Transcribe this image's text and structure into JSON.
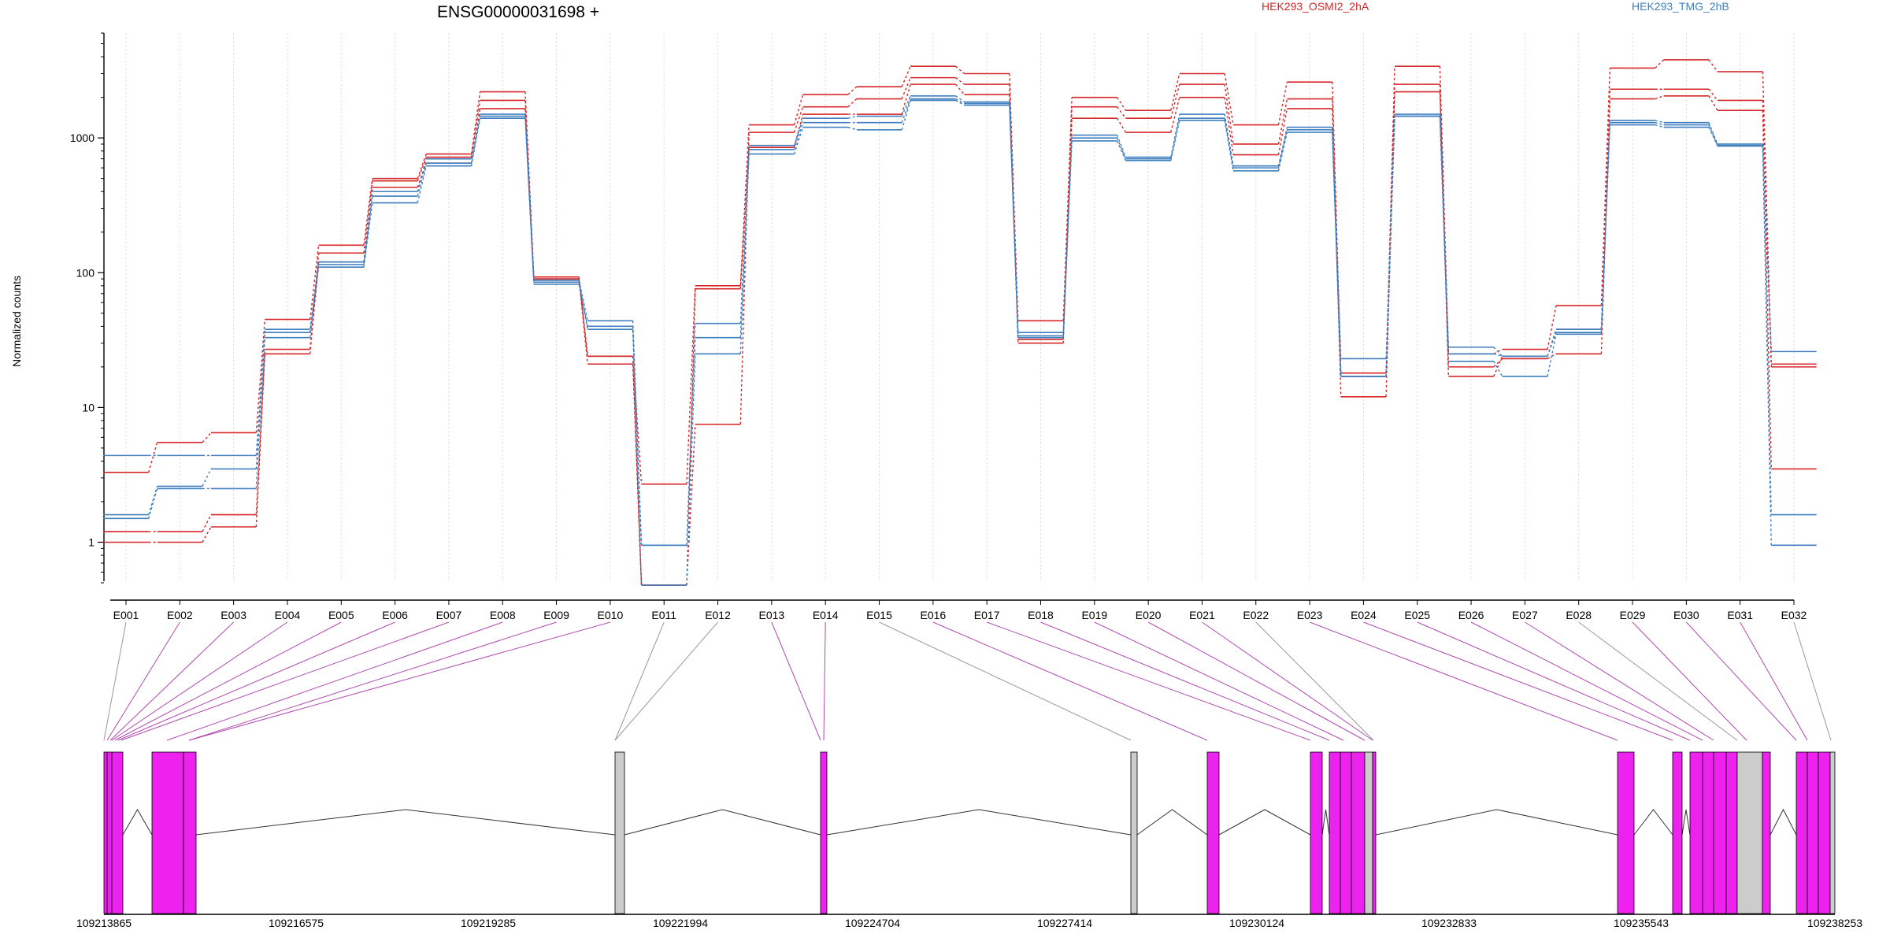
{
  "chart_data": {
    "type": "line",
    "title": "ENSG00000031698 +",
    "ylabel": "Normalized counts",
    "xlabel": "",
    "y_scale": "log",
    "ylim": [
      0.5,
      6000
    ],
    "y_ticks": [
      1,
      10,
      100,
      1000
    ],
    "y_tick_labels": [
      "1",
      "10",
      "100",
      "1000"
    ],
    "grid": "vertical dotted lines at exon bins",
    "legend_entries": [
      {
        "label": "HEK293_OSMI2_2hA",
        "color": "#d62728"
      },
      {
        "label": "HEK293_TMG_2hB",
        "color": "#3f7fbf"
      }
    ],
    "categories": [
      "E001",
      "E002",
      "E003",
      "E004",
      "E005",
      "E006",
      "E007",
      "E008",
      "E009",
      "E010",
      "E011",
      "E012",
      "E013",
      "E014",
      "E015",
      "E016",
      "E017",
      "E018",
      "E019",
      "E020",
      "E021",
      "E022",
      "E023",
      "E024",
      "E025",
      "E026",
      "E027",
      "E028",
      "E029",
      "E030",
      "E031",
      "E032"
    ],
    "series": [
      {
        "name": "HEK293_OSMI2_2hA",
        "color": "#d62728",
        "values": [
          3.3,
          5.5,
          6.5,
          45,
          160,
          500,
          760,
          2200,
          93,
          24,
          2.7,
          80,
          1250,
          2100,
          2400,
          3400,
          3000,
          44,
          2000,
          1600,
          3000,
          1250,
          2600,
          18,
          3400,
          25,
          27,
          57,
          3300,
          3800,
          3100,
          21
        ]
      },
      {
        "color": "#d62728",
        "values": [
          1.2,
          1.2,
          1.6,
          27,
          140,
          480,
          720,
          1900,
          90,
          21,
          0.48,
          7.5,
          1100,
          1700,
          1950,
          2800,
          2500,
          30,
          1700,
          1400,
          2500,
          900,
          1950,
          12,
          2500,
          17,
          24,
          38,
          2300,
          2300,
          1900,
          20
        ]
      },
      {
        "color": "#d62728",
        "values": [
          1.0,
          1.0,
          1.3,
          25,
          120,
          430,
          650,
          1650,
          88,
          24,
          0.48,
          76,
          850,
          1500,
          1500,
          2500,
          2100,
          32,
          1400,
          1100,
          2000,
          750,
          1650,
          17,
          2200,
          20,
          23,
          25,
          1950,
          2050,
          1600,
          3.5
        ]
      },
      {
        "name": "HEK293_TMG_2hB",
        "color": "#3f7fbf",
        "values": [
          4.4,
          4.4,
          4.4,
          38,
          120,
          400,
          700,
          1500,
          88,
          44,
          0.95,
          42,
          880,
          1400,
          1450,
          2050,
          1850,
          36,
          1050,
          720,
          1500,
          620,
          1200,
          23,
          1500,
          28,
          24,
          38,
          1350,
          1300,
          900,
          26
        ]
      },
      {
        "color": "#3f7fbf",
        "values": [
          1.6,
          2.6,
          3.5,
          36,
          115,
          370,
          650,
          1450,
          85,
          40,
          0.95,
          33,
          820,
          1300,
          1300,
          1950,
          1800,
          33,
          1000,
          700,
          1400,
          600,
          1150,
          17,
          1450,
          25,
          24,
          36,
          1300,
          1250,
          880,
          1.6
        ]
      },
      {
        "color": "#3f7fbf",
        "values": [
          1.5,
          2.5,
          2.5,
          33,
          110,
          330,
          620,
          1400,
          82,
          38,
          0.48,
          25,
          760,
          1200,
          1150,
          1900,
          1750,
          34,
          950,
          680,
          1350,
          570,
          1100,
          17,
          1450,
          22,
          17,
          35,
          1250,
          1200,
          870,
          0.95
        ]
      }
    ],
    "gene_model": {
      "coordinate_ticks": [
        "109213865",
        "109216575",
        "109219285",
        "109221994",
        "109224704",
        "109227414",
        "109230124",
        "109232833",
        "109235543",
        "109238253"
      ]
    }
  }
}
